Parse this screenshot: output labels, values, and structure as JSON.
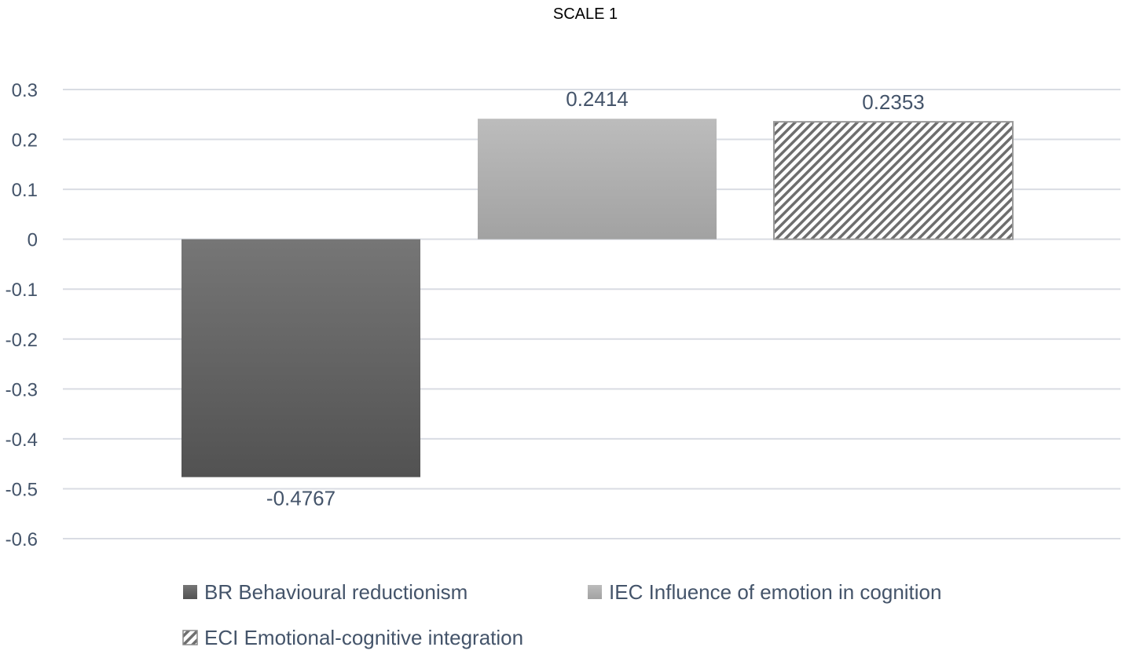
{
  "chart_data": {
    "type": "bar",
    "title": "SCALE 1",
    "xlabel": "",
    "ylabel": "",
    "ylim": [
      -0.6,
      0.3
    ],
    "yticks": [
      0.3,
      0.2,
      0.1,
      0,
      -0.1,
      -0.2,
      -0.3,
      -0.4,
      -0.5,
      -0.6
    ],
    "ytick_labels": [
      "0.3",
      "0.2",
      "0.1",
      "0",
      "-0.1",
      "-0.2",
      "-0.3",
      "-0.4",
      "-0.5",
      "-0.6"
    ],
    "grid": true,
    "legend_position": "bottom",
    "series": [
      {
        "name": "BR Behavioural reductionism",
        "values": [
          -0.4767
        ],
        "label": "-0.4767",
        "fill": "dark-gray-gradient",
        "color": "#5a5a5a"
      },
      {
        "name": "IEC Influence of emotion in cognition",
        "values": [
          0.2414
        ],
        "label": "0.2414",
        "fill": "light-gray-gradient",
        "color": "#b0b0b0"
      },
      {
        "name": "ECI Emotional-cognitive integration",
        "values": [
          0.2353
        ],
        "label": "0.2353",
        "fill": "diagonal-hatch",
        "color": "#7f7f7f"
      }
    ]
  },
  "colors": {
    "gridline": "#d9dce3",
    "axis_text": "#44546a",
    "title_text": "#000000"
  }
}
